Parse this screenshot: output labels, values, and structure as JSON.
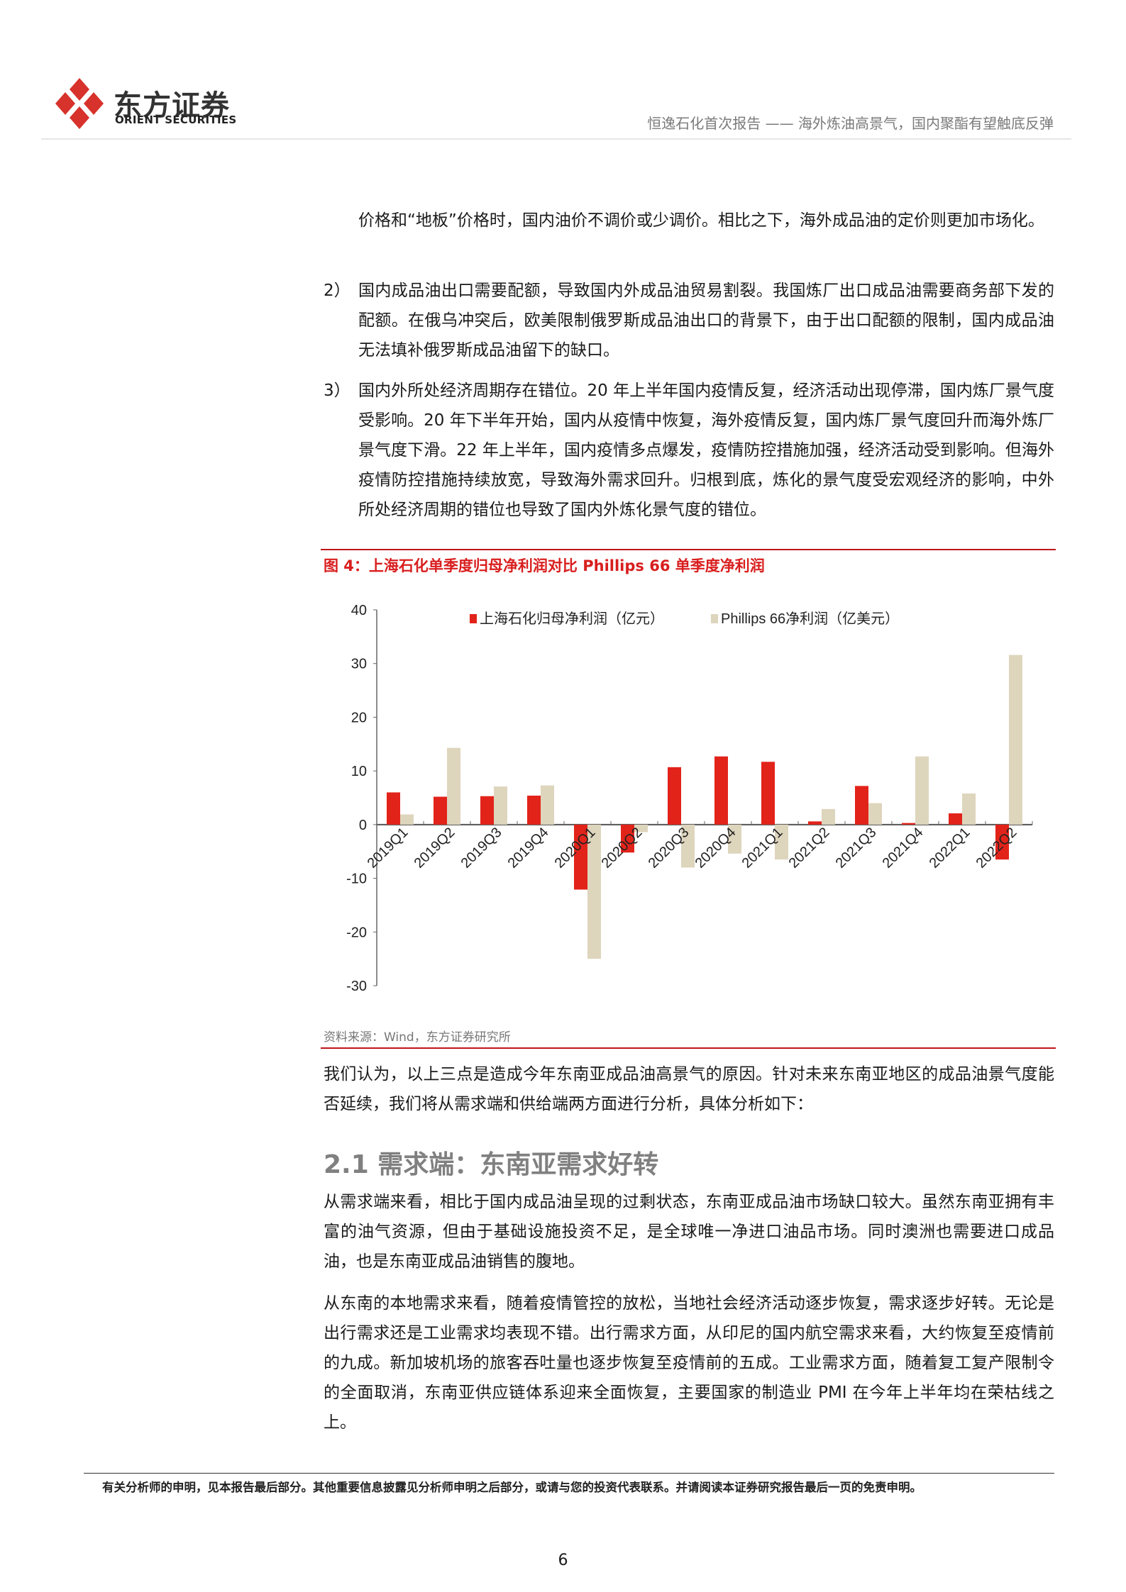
{
  "header": {
    "logo_cn": "东方证券",
    "logo_en": "ORIENT SECURITIES",
    "report_title": "恒逸石化首次报告 —— 海外炼油高景气，国内聚酯有望触底反弹",
    "brand_color": "#d7322b"
  },
  "body": {
    "para_continued": "价格和“地板”价格时，国内油价不调价或少调价。相比之下，海外成品油的定价则更加市场化。",
    "items": [
      {
        "num": "2）",
        "text": "国内成品油出口需要配额，导致国内外成品油贸易割裂。我国炼厂出口成品油需要商务部下发的配额。在俄乌冲突后，欧美限制俄罗斯成品油出口的背景下，由于出口配额的限制，国内成品油无法填补俄罗斯成品油留下的缺口。"
      },
      {
        "num": "3）",
        "text": "国内外所处经济周期存在错位。20 年上半年国内疫情反复，经济活动出现停滞，国内炼厂景气度受影响。20 年下半年开始，国内从疫情中恢复，海外疫情反复，国内炼厂景气度回升而海外炼厂景气度下滑。22 年上半年，国内疫情多点爆发，疫情防控措施加强，经济活动受到影响。但海外疫情防控措施持续放宽，导致海外需求回升。归根到底，炼化的景气度受宏观经济的影响，中外所处经济周期的错位也导致了国内外炼化景气度的错位。"
      }
    ],
    "figure_title": "图 4：上海石化单季度归母净利润对比 Phillips 66 单季度净利润",
    "figure_source": "资料来源：Wind，东方证券研究所",
    "para_after_chart": "我们认为，以上三点是造成今年东南亚成品油高景气的原因。针对未来东南亚地区的成品油景气度能否延续，我们将从需求端和供给端两方面进行分析，具体分析如下：",
    "section_heading": "2.1 需求端：东南亚需求好转",
    "para_demand_1": "从需求端来看，相比于国内成品油呈现的过剩状态，东南亚成品油市场缺口较大。虽然东南亚拥有丰富的油气资源，但由于基础设施投资不足，是全球唯一净进口油品市场。同时澳洲也需要进口成品油，也是东南亚成品油销售的腹地。",
    "para_demand_2": "从东南的本地需求来看，随着疫情管控的放松，当地社会经济活动逐步恢复，需求逐步好转。无论是出行需求还是工业需求均表现不错。出行需求方面，从印尼的国内航空需求来看，大约恢复至疫情前的九成。新加坡机场的旅客吞吐量也逐步恢复至疫情前的五成。工业需求方面，随着复工复产限制令的全面取消，东南亚供应链体系迎来全面恢复，主要国家的制造业 PMI 在今年上半年均在荣枯线之上。"
  },
  "footer": {
    "disclaimer": "有关分析师的申明，见本报告最后部分。其他重要信息披露见分析师申明之后部分，或请与您的投资代表联系。并请阅读本证券研究报告最后一页的免责申明。",
    "page_number": "6"
  },
  "chart_data": {
    "type": "bar",
    "title": "",
    "xlabel": "",
    "ylabel": "",
    "ylim": [
      -30,
      40
    ],
    "yticks": [
      "40",
      "30",
      "20",
      "10",
      "0",
      "-10",
      "-20",
      "-30"
    ],
    "legend_position": "top",
    "grid": false,
    "categories": [
      "2019Q1",
      "2019Q2",
      "2019Q3",
      "2019Q4",
      "2020Q1",
      "2020Q2",
      "2020Q3",
      "2020Q4",
      "2021Q1",
      "2021Q2",
      "2021Q3",
      "2021Q4",
      "2022Q1",
      "2022Q2"
    ],
    "series": [
      {
        "name": "上海石化归母净利润（亿元）",
        "color": "#e2231a",
        "values": [
          6.0,
          5.2,
          5.3,
          5.4,
          -12.1,
          -5.2,
          10.7,
          12.7,
          11.7,
          0.6,
          7.2,
          0.3,
          2.1,
          -6.5
        ]
      },
      {
        "name": "Phillips 66净利润（亿美元）",
        "color": "#ded5bd",
        "values": [
          1.9,
          14.3,
          7.1,
          7.3,
          -25.0,
          -1.4,
          -8.0,
          -5.4,
          -6.5,
          2.9,
          4.0,
          12.7,
          5.8,
          31.6
        ]
      }
    ]
  }
}
